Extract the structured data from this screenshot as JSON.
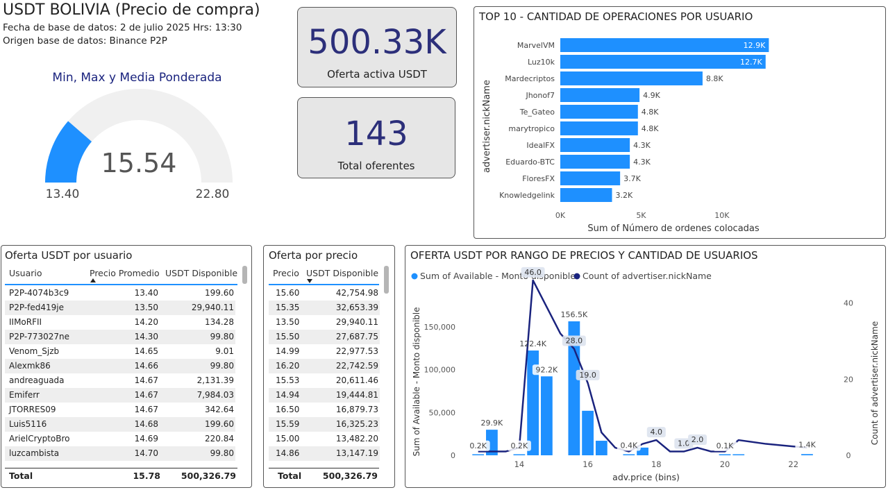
{
  "header": {
    "title": "USDT BOLIVIA (Precio de compra)",
    "date_line": "Fecha de base de datos: 2 de julio 2025  Hrs: 13:30",
    "source_line": "Origen base de datos: Binance P2P"
  },
  "gauge": {
    "title": "Min, Max y Media Ponderada",
    "value_label": "15.54",
    "min_label": "13.40",
    "max_label": "22.80",
    "value": 15.54,
    "min": 13.4,
    "max": 22.8,
    "fill_color": "#1e90ff",
    "track_color": "#f0f0f0"
  },
  "kpis": {
    "offer": {
      "value": "500.33K",
      "label": "Oferta activa USDT"
    },
    "offerers": {
      "value": "143",
      "label": "Total oferentes"
    }
  },
  "top10": {
    "title": "TOP 10 - CANTIDAD DE OPERACIONES POR USUARIO",
    "ylabel": "advertiser.nickName",
    "xlabel": "Sum of Número de ordenes colocadas",
    "ticks": [
      "0K",
      "5K",
      "10K"
    ],
    "tick_values": [
      0,
      5000,
      10000
    ],
    "xmax": 14000,
    "bar_color": "#1e90ff",
    "users": [
      "MarvelVM",
      "Luz10k",
      "Mardecriptos",
      "Jhonof7",
      "Te_Gateo",
      "marytropico",
      "IdealFX",
      "Eduardo-BTC",
      "FloresFX",
      "Knowledgelink"
    ],
    "values": [
      12900,
      12700,
      8800,
      4900,
      4800,
      4800,
      4300,
      4300,
      3700,
      3200
    ],
    "labels": [
      "12.9K",
      "12.7K",
      "8.8K",
      "4.9K",
      "4.8K",
      "4.8K",
      "4.3K",
      "4.3K",
      "3.7K",
      "3.2K"
    ]
  },
  "users_table": {
    "title": "Oferta USDT por usuario",
    "columns": [
      "Usuario",
      "Precio Promedio",
      "USDT Disponible"
    ],
    "sort_icon": "sort-ascending-icon",
    "rows": [
      [
        "P2P-4074b3c9",
        "13.40",
        "199.60"
      ],
      [
        "P2P-fed419je",
        "13.50",
        "29,940.11"
      ],
      [
        "IIMoRFII",
        "14.20",
        "134.28"
      ],
      [
        "P2P-773027ne",
        "14.30",
        "99.80"
      ],
      [
        "Venom_Sjzb",
        "14.65",
        "9.01"
      ],
      [
        "Alexmk86",
        "14.66",
        "99.80"
      ],
      [
        "andreaguada",
        "14.67",
        "2,131.39"
      ],
      [
        "Emiferr",
        "14.67",
        "7,984.03"
      ],
      [
        "JTORRES09",
        "14.67",
        "342.64"
      ],
      [
        "Luis5116",
        "14.68",
        "199.60"
      ],
      [
        "ArielCryptoBro",
        "14.69",
        "220.84"
      ],
      [
        "luzcambista",
        "14.70",
        "99.80"
      ]
    ],
    "total": [
      "Total",
      "15.78",
      "500,326.79"
    ]
  },
  "price_table": {
    "title": "Oferta por precio",
    "columns": [
      "Precio",
      "USDT Disponible"
    ],
    "sort_icon": "sort-descending-icon",
    "rows": [
      [
        "15.60",
        "42,754.98"
      ],
      [
        "15.35",
        "32,653.39"
      ],
      [
        "13.50",
        "29,940.11"
      ],
      [
        "15.50",
        "27,687.75"
      ],
      [
        "14.99",
        "22,977.53"
      ],
      [
        "16.20",
        "22,742.59"
      ],
      [
        "15.53",
        "20,611.46"
      ],
      [
        "14.94",
        "19,444.81"
      ],
      [
        "16.50",
        "16,879.73"
      ],
      [
        "15.59",
        "16,325.23"
      ],
      [
        "15.00",
        "13,482.20"
      ],
      [
        "14.86",
        "13,147.19"
      ]
    ],
    "total": [
      "Total",
      "500,326.79"
    ]
  },
  "chart_data": {
    "type": "bar",
    "title": "OFERTA USDT POR RANGO DE PRECIOS Y CANTIDAD DE USUARIOS",
    "xlabel": "adv.price (bins)",
    "ylabel": "Sum of Available - Monto disponible",
    "y2label": "Count of advertiser.nickName",
    "legend": [
      "Sum of Available - Monto disponible",
      "Count of advertiser.nickName"
    ],
    "legend_position": "top-left",
    "xlim": [
      12.3,
      23.1
    ],
    "xticks": [
      14,
      16,
      18,
      20,
      22
    ],
    "ylim": [
      0,
      180000
    ],
    "yticks": [
      0,
      50000,
      100000,
      150000
    ],
    "ytick_labels": [
      "0",
      "50,000",
      "100,000",
      "150,000"
    ],
    "y2lim": [
      0,
      40.5
    ],
    "y2ticks": [
      0,
      20,
      40
    ],
    "bar_color": "#1e90ff",
    "line_color": "#1a237e",
    "bin_width": 0.4,
    "bars": [
      {
        "x": 12.8,
        "value": 200,
        "label": "0.2K"
      },
      {
        "x": 13.2,
        "value": 29900,
        "label": "29.9K"
      },
      {
        "x": 13.6,
        "value": 0,
        "label": ""
      },
      {
        "x": 14.0,
        "value": 200,
        "label": "0.2K"
      },
      {
        "x": 14.4,
        "value": 122400,
        "label": "122.4K"
      },
      {
        "x": 14.8,
        "value": 92200,
        "label": "92.2K"
      },
      {
        "x": 15.2,
        "value": 0,
        "label": ""
      },
      {
        "x": 15.6,
        "value": 156500,
        "label": "156.5K"
      },
      {
        "x": 16.0,
        "value": 52000,
        "label": ""
      },
      {
        "x": 16.4,
        "value": 17000,
        "label": ""
      },
      {
        "x": 16.8,
        "value": 0,
        "label": ""
      },
      {
        "x": 17.2,
        "value": 400,
        "label": "0.4K"
      },
      {
        "x": 17.6,
        "value": 9000,
        "label": ""
      },
      {
        "x": 18.0,
        "value": 0,
        "label": ""
      },
      {
        "x": 18.4,
        "value": 0,
        "label": ""
      },
      {
        "x": 18.8,
        "value": 0,
        "label": ""
      },
      {
        "x": 19.2,
        "value": 0,
        "label": ""
      },
      {
        "x": 19.6,
        "value": 0,
        "label": ""
      },
      {
        "x": 20.0,
        "value": 100,
        "label": "0.1K"
      },
      {
        "x": 20.4,
        "value": 800,
        "label": ""
      },
      {
        "x": 20.8,
        "value": 0,
        "label": ""
      },
      {
        "x": 21.2,
        "value": 0,
        "label": ""
      },
      {
        "x": 21.6,
        "value": 0,
        "label": ""
      },
      {
        "x": 22.0,
        "value": 0,
        "label": ""
      },
      {
        "x": 22.4,
        "value": 1400,
        "label": "1.4K"
      }
    ],
    "line": [
      {
        "x": 12.8,
        "value": 1,
        "label": ""
      },
      {
        "x": 13.6,
        "value": 1,
        "label": ""
      },
      {
        "x": 14.0,
        "value": 2,
        "label": ""
      },
      {
        "x": 14.4,
        "value": 46,
        "label": "46.0"
      },
      {
        "x": 14.8,
        "value": 39,
        "label": ""
      },
      {
        "x": 15.2,
        "value": 32,
        "label": ""
      },
      {
        "x": 15.6,
        "value": 28,
        "label": "28.0"
      },
      {
        "x": 16.0,
        "value": 19,
        "label": "19.0"
      },
      {
        "x": 16.4,
        "value": 6,
        "label": ""
      },
      {
        "x": 16.8,
        "value": 2,
        "label": ""
      },
      {
        "x": 17.2,
        "value": 1,
        "label": ""
      },
      {
        "x": 17.6,
        "value": 3,
        "label": ""
      },
      {
        "x": 18.0,
        "value": 4,
        "label": "4.0"
      },
      {
        "x": 18.4,
        "value": 1,
        "label": ""
      },
      {
        "x": 18.8,
        "value": 1,
        "label": "1.0"
      },
      {
        "x": 19.2,
        "value": 2,
        "label": "2.0"
      },
      {
        "x": 19.6,
        "value": 1,
        "label": ""
      },
      {
        "x": 20.0,
        "value": 1,
        "label": ""
      },
      {
        "x": 20.4,
        "value": 4,
        "label": ""
      },
      {
        "x": 21.2,
        "value": 3,
        "label": ""
      },
      {
        "x": 22.4,
        "value": 2,
        "label": ""
      }
    ]
  }
}
